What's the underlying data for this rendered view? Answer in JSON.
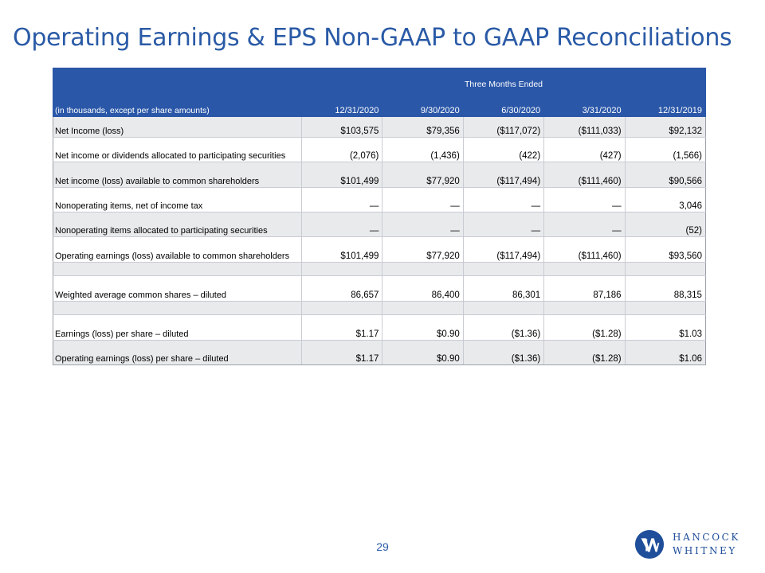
{
  "title": "Operating Earnings & EPS Non-GAAP to GAAP Reconciliations",
  "table": {
    "group_header": "Three Months Ended",
    "label_header": "(in thousands, except per share amounts)",
    "periods": [
      "12/31/2020",
      "9/30/2020",
      "6/30/2020",
      "3/31/2020",
      "12/31/2019"
    ],
    "rows": [
      {
        "label": "Net Income (loss)",
        "values": [
          "$103,575",
          "$79,356",
          "($117,072)",
          "($111,033)",
          "$92,132"
        ]
      },
      {
        "label": "Net income or dividends allocated to participating securities",
        "values": [
          "(2,076)",
          "(1,436)",
          "(422)",
          "(427)",
          "(1,566)"
        ]
      },
      {
        "label": "Net income (loss) available to common shareholders",
        "values": [
          "$101,499",
          "$77,920",
          "($117,494)",
          "($111,460)",
          "$90,566"
        ]
      },
      {
        "label": "Nonoperating items, net of income tax",
        "values": [
          "—",
          "—",
          "—",
          "—",
          "3,046"
        ]
      },
      {
        "label": "Nonoperating items allocated to participating securities",
        "values": [
          "—",
          "—",
          "—",
          "—",
          "(52)"
        ]
      },
      {
        "label": "Operating earnings (loss) available to common shareholders",
        "values": [
          "$101,499",
          "$77,920",
          "($117,494)",
          "($111,460)",
          "$93,560"
        ]
      },
      {
        "label": "",
        "values": [
          "",
          "",
          "",
          "",
          ""
        ]
      },
      {
        "label": "Weighted average common shares – diluted",
        "values": [
          "86,657",
          "86,400",
          "86,301",
          "87,186",
          "88,315"
        ]
      },
      {
        "label": "",
        "values": [
          "",
          "",
          "",
          "",
          ""
        ]
      },
      {
        "label": "Earnings (loss) per share – diluted",
        "values": [
          "$1.17",
          "$0.90",
          "($1.36)",
          "($1.28)",
          "$1.03"
        ]
      },
      {
        "label": "Operating earnings (loss) per share – diluted",
        "values": [
          "$1.17",
          "$0.90",
          "($1.36)",
          "($1.28)",
          "$1.06"
        ]
      }
    ]
  },
  "footer": {
    "page_number": "29",
    "logo_line1": "HANCOCK",
    "logo_line2": "WHITNEY"
  },
  "colors": {
    "title": "#2a5aa6",
    "header_fill": "#2a57a8",
    "row_shade": "#e9eaec",
    "logo": "#1f4e9a"
  }
}
